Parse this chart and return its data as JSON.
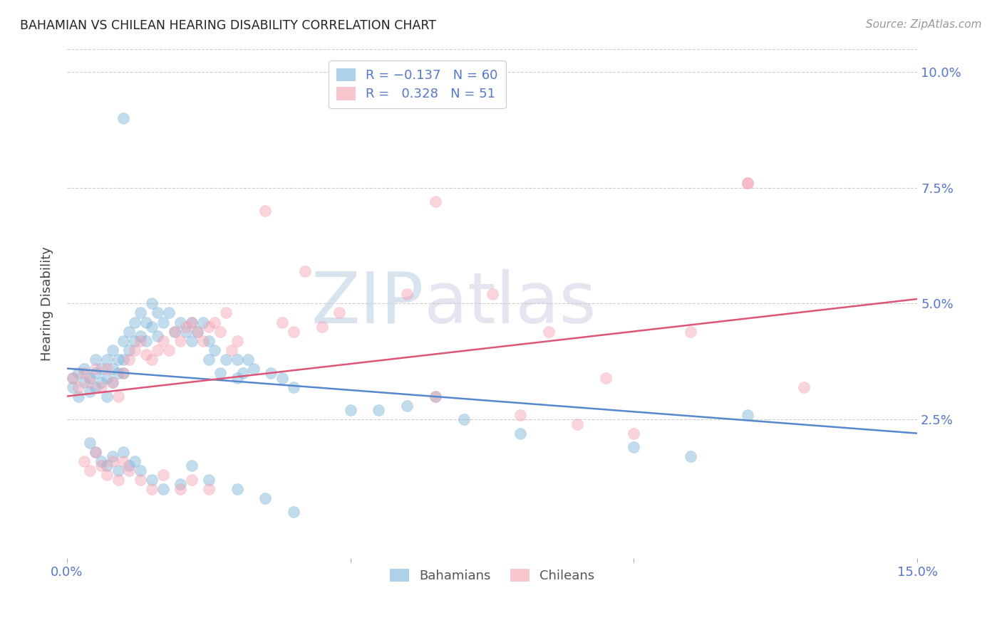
{
  "title": "BAHAMIAN VS CHILEAN HEARING DISABILITY CORRELATION CHART",
  "source": "Source: ZipAtlas.com",
  "ylabel": "Hearing Disability",
  "watermark_zip": "ZIP",
  "watermark_atlas": "atlas",
  "xlim": [
    0.0,
    0.15
  ],
  "ylim": [
    -0.005,
    0.105
  ],
  "ytick_positions": [
    0.025,
    0.05,
    0.075,
    0.1
  ],
  "ytick_labels": [
    "2.5%",
    "5.0%",
    "7.5%",
    "10.0%"
  ],
  "xtick_positions": [
    0.0,
    0.05,
    0.1,
    0.15
  ],
  "xtick_labels": [
    "0.0%",
    "",
    "",
    "15.0%"
  ],
  "grid_color": "#cccccc",
  "background_color": "#ffffff",
  "blue_color": "#7ab3d9",
  "pink_color": "#f4a0b0",
  "line_blue_color": "#5588cc",
  "line_pink_color": "#dd5577",
  "tick_color": "#5577cc",
  "bahamians_label": "Bahamians",
  "chileans_label": "Chileans",
  "blue_line_x": [
    0.0,
    0.15
  ],
  "blue_line_y": [
    0.036,
    0.022
  ],
  "pink_line_x": [
    0.0,
    0.15
  ],
  "pink_line_y": [
    0.03,
    0.051
  ],
  "blue_scatter": [
    [
      0.001,
      0.034
    ],
    [
      0.001,
      0.032
    ],
    [
      0.002,
      0.035
    ],
    [
      0.002,
      0.03
    ],
    [
      0.003,
      0.036
    ],
    [
      0.003,
      0.033
    ],
    [
      0.004,
      0.034
    ],
    [
      0.004,
      0.031
    ],
    [
      0.005,
      0.038
    ],
    [
      0.005,
      0.035
    ],
    [
      0.005,
      0.032
    ],
    [
      0.006,
      0.036
    ],
    [
      0.006,
      0.033
    ],
    [
      0.007,
      0.038
    ],
    [
      0.007,
      0.034
    ],
    [
      0.007,
      0.03
    ],
    [
      0.008,
      0.04
    ],
    [
      0.008,
      0.036
    ],
    [
      0.008,
      0.033
    ],
    [
      0.009,
      0.038
    ],
    [
      0.009,
      0.035
    ],
    [
      0.01,
      0.042
    ],
    [
      0.01,
      0.038
    ],
    [
      0.01,
      0.035
    ],
    [
      0.011,
      0.044
    ],
    [
      0.011,
      0.04
    ],
    [
      0.012,
      0.046
    ],
    [
      0.012,
      0.042
    ],
    [
      0.013,
      0.048
    ],
    [
      0.013,
      0.043
    ],
    [
      0.014,
      0.046
    ],
    [
      0.014,
      0.042
    ],
    [
      0.015,
      0.05
    ],
    [
      0.015,
      0.045
    ],
    [
      0.016,
      0.048
    ],
    [
      0.016,
      0.043
    ],
    [
      0.017,
      0.046
    ],
    [
      0.018,
      0.048
    ],
    [
      0.019,
      0.044
    ],
    [
      0.02,
      0.046
    ],
    [
      0.021,
      0.044
    ],
    [
      0.022,
      0.046
    ],
    [
      0.022,
      0.042
    ],
    [
      0.023,
      0.044
    ],
    [
      0.024,
      0.046
    ],
    [
      0.025,
      0.042
    ],
    [
      0.025,
      0.038
    ],
    [
      0.026,
      0.04
    ],
    [
      0.027,
      0.035
    ],
    [
      0.028,
      0.038
    ],
    [
      0.03,
      0.034
    ],
    [
      0.03,
      0.038
    ],
    [
      0.031,
      0.035
    ],
    [
      0.032,
      0.038
    ],
    [
      0.033,
      0.036
    ],
    [
      0.036,
      0.035
    ],
    [
      0.038,
      0.034
    ],
    [
      0.01,
      0.09
    ],
    [
      0.04,
      0.032
    ],
    [
      0.05,
      0.027
    ],
    [
      0.06,
      0.028
    ],
    [
      0.07,
      0.025
    ],
    [
      0.08,
      0.022
    ],
    [
      0.1,
      0.019
    ],
    [
      0.11,
      0.017
    ],
    [
      0.12,
      0.026
    ],
    [
      0.004,
      0.02
    ],
    [
      0.005,
      0.018
    ],
    [
      0.006,
      0.016
    ],
    [
      0.007,
      0.015
    ],
    [
      0.008,
      0.017
    ],
    [
      0.009,
      0.014
    ],
    [
      0.01,
      0.018
    ],
    [
      0.011,
      0.015
    ],
    [
      0.012,
      0.016
    ],
    [
      0.013,
      0.014
    ],
    [
      0.015,
      0.012
    ],
    [
      0.017,
      0.01
    ],
    [
      0.02,
      0.011
    ],
    [
      0.022,
      0.015
    ],
    [
      0.025,
      0.012
    ],
    [
      0.03,
      0.01
    ],
    [
      0.035,
      0.008
    ],
    [
      0.04,
      0.005
    ],
    [
      0.055,
      0.027
    ],
    [
      0.065,
      0.03
    ]
  ],
  "pink_scatter": [
    [
      0.001,
      0.034
    ],
    [
      0.002,
      0.032
    ],
    [
      0.003,
      0.035
    ],
    [
      0.004,
      0.033
    ],
    [
      0.005,
      0.036
    ],
    [
      0.006,
      0.032
    ],
    [
      0.007,
      0.036
    ],
    [
      0.008,
      0.033
    ],
    [
      0.009,
      0.03
    ],
    [
      0.01,
      0.035
    ],
    [
      0.011,
      0.038
    ],
    [
      0.012,
      0.04
    ],
    [
      0.013,
      0.042
    ],
    [
      0.014,
      0.039
    ],
    [
      0.015,
      0.038
    ],
    [
      0.016,
      0.04
    ],
    [
      0.017,
      0.042
    ],
    [
      0.018,
      0.04
    ],
    [
      0.019,
      0.044
    ],
    [
      0.02,
      0.042
    ],
    [
      0.021,
      0.045
    ],
    [
      0.022,
      0.046
    ],
    [
      0.023,
      0.044
    ],
    [
      0.024,
      0.042
    ],
    [
      0.025,
      0.045
    ],
    [
      0.026,
      0.046
    ],
    [
      0.027,
      0.044
    ],
    [
      0.028,
      0.048
    ],
    [
      0.029,
      0.04
    ],
    [
      0.03,
      0.042
    ],
    [
      0.003,
      0.016
    ],
    [
      0.004,
      0.014
    ],
    [
      0.005,
      0.018
    ],
    [
      0.006,
      0.015
    ],
    [
      0.007,
      0.013
    ],
    [
      0.008,
      0.016
    ],
    [
      0.009,
      0.012
    ],
    [
      0.01,
      0.016
    ],
    [
      0.011,
      0.014
    ],
    [
      0.013,
      0.012
    ],
    [
      0.015,
      0.01
    ],
    [
      0.017,
      0.013
    ],
    [
      0.02,
      0.01
    ],
    [
      0.022,
      0.012
    ],
    [
      0.025,
      0.01
    ],
    [
      0.035,
      0.07
    ],
    [
      0.038,
      0.046
    ],
    [
      0.04,
      0.044
    ],
    [
      0.042,
      0.057
    ],
    [
      0.045,
      0.045
    ],
    [
      0.048,
      0.048
    ],
    [
      0.06,
      0.052
    ],
    [
      0.065,
      0.072
    ],
    [
      0.065,
      0.03
    ],
    [
      0.075,
      0.052
    ],
    [
      0.08,
      0.026
    ],
    [
      0.085,
      0.044
    ],
    [
      0.09,
      0.024
    ],
    [
      0.095,
      0.034
    ],
    [
      0.1,
      0.022
    ],
    [
      0.11,
      0.044
    ],
    [
      0.12,
      0.076
    ],
    [
      0.13,
      0.032
    ],
    [
      0.12,
      0.076
    ]
  ]
}
